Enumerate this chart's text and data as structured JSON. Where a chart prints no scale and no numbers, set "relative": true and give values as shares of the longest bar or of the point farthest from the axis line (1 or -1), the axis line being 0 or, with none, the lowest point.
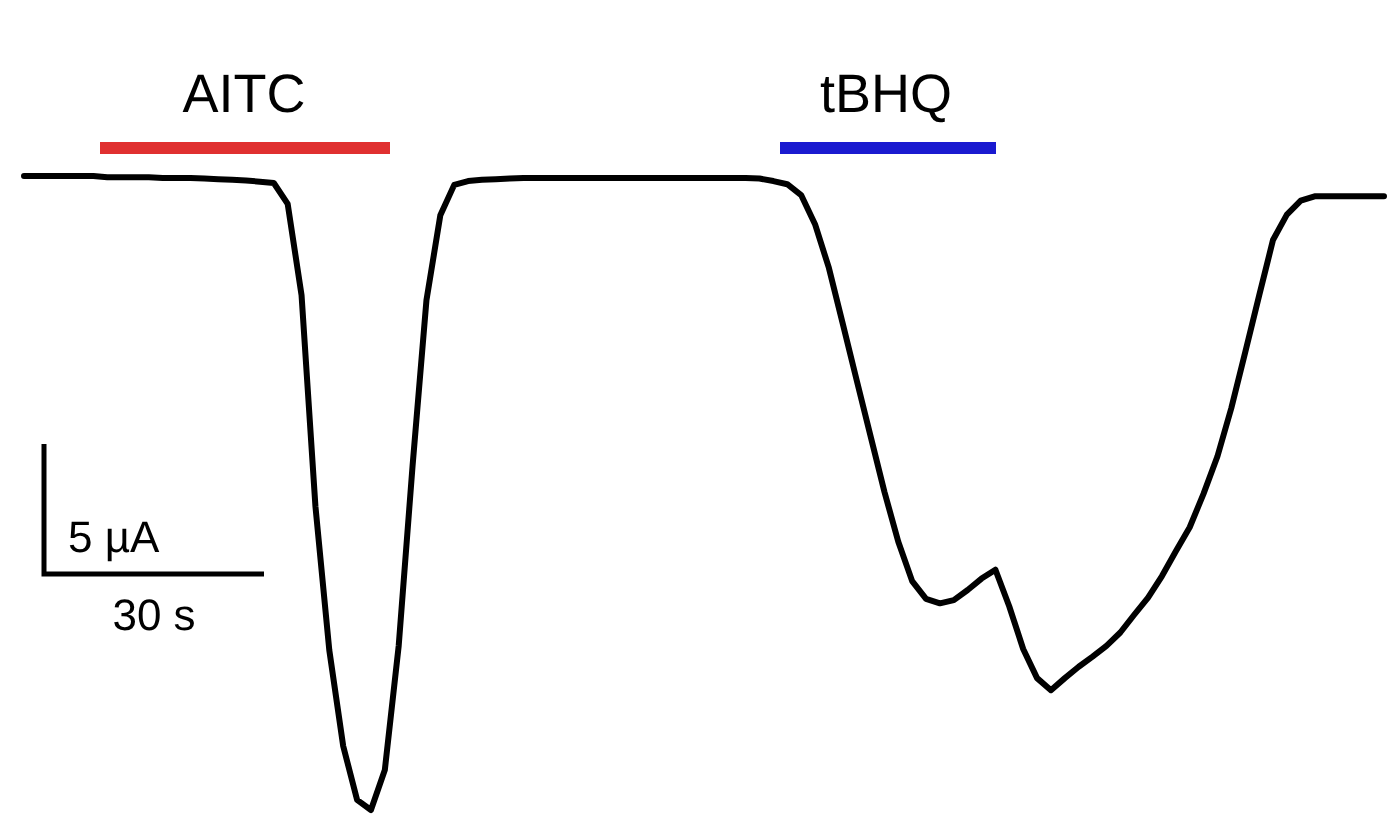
{
  "chart_data": {
    "type": "line",
    "relative": true,
    "categories": [
      null,
      null,
      null,
      null,
      null,
      null,
      null,
      null,
      null,
      null,
      null,
      null,
      null,
      null,
      null,
      null,
      null,
      null,
      null,
      null,
      null,
      null,
      null,
      null,
      null,
      null,
      null,
      null,
      null,
      null,
      null,
      null,
      null,
      null,
      null,
      null,
      null,
      null,
      null,
      null,
      null,
      null,
      null,
      null,
      null,
      null,
      null,
      null,
      null,
      null,
      null,
      null,
      null,
      null,
      null,
      null,
      null,
      null,
      null,
      null,
      null,
      null,
      null,
      null,
      null,
      null,
      null,
      null,
      null,
      null,
      null,
      null,
      null,
      null,
      null,
      null,
      null,
      null,
      null,
      null,
      null,
      null,
      null,
      null,
      null,
      null,
      null,
      null,
      null,
      null,
      null,
      null,
      null,
      null,
      null,
      null,
      null,
      null,
      null
    ],
    "series": [
      {
        "color": "#000000",
        "values": [
          1.0,
          1.0,
          1.0,
          1.0,
          1.0,
          1.0,
          0.998,
          0.998,
          0.998,
          0.998,
          0.997,
          0.997,
          0.997,
          0.996,
          0.995,
          0.994,
          0.993,
          0.991,
          0.989,
          0.956,
          0.812,
          0.479,
          0.252,
          0.101,
          0.016,
          0,
          0.063,
          0.259,
          0.543,
          0.804,
          0.938,
          0.986,
          0.992,
          0.994,
          0.995,
          0.996,
          0.997,
          0.997,
          0.997,
          0.997,
          0.997,
          0.997,
          0.997,
          0.997,
          0.997,
          0.997,
          0.997,
          0.997,
          0.997,
          0.997,
          0.997,
          0.997,
          0.997,
          0.996,
          0.992,
          0.987,
          0.97,
          0.924,
          0.855,
          0.767,
          0.678,
          0.59,
          0.502,
          0.423,
          0.361,
          0.333,
          0.326,
          0.331,
          0.347,
          0.365,
          0.379,
          0.321,
          0.254,
          0.208,
          0.189,
          0.208,
          0.226,
          0.242,
          0.259,
          0.28,
          0.308,
          0.335,
          0.369,
          0.408,
          0.446,
          0.499,
          0.558,
          0.634,
          0.722,
          0.811,
          0.899,
          0.939,
          0.961,
          0.968,
          0.968,
          0.968,
          0.968,
          0.968,
          0.968
        ]
      }
    ],
    "annotations": [
      "AITC",
      "tBHQ",
      "5 µA",
      "30 s"
    ]
  }
}
